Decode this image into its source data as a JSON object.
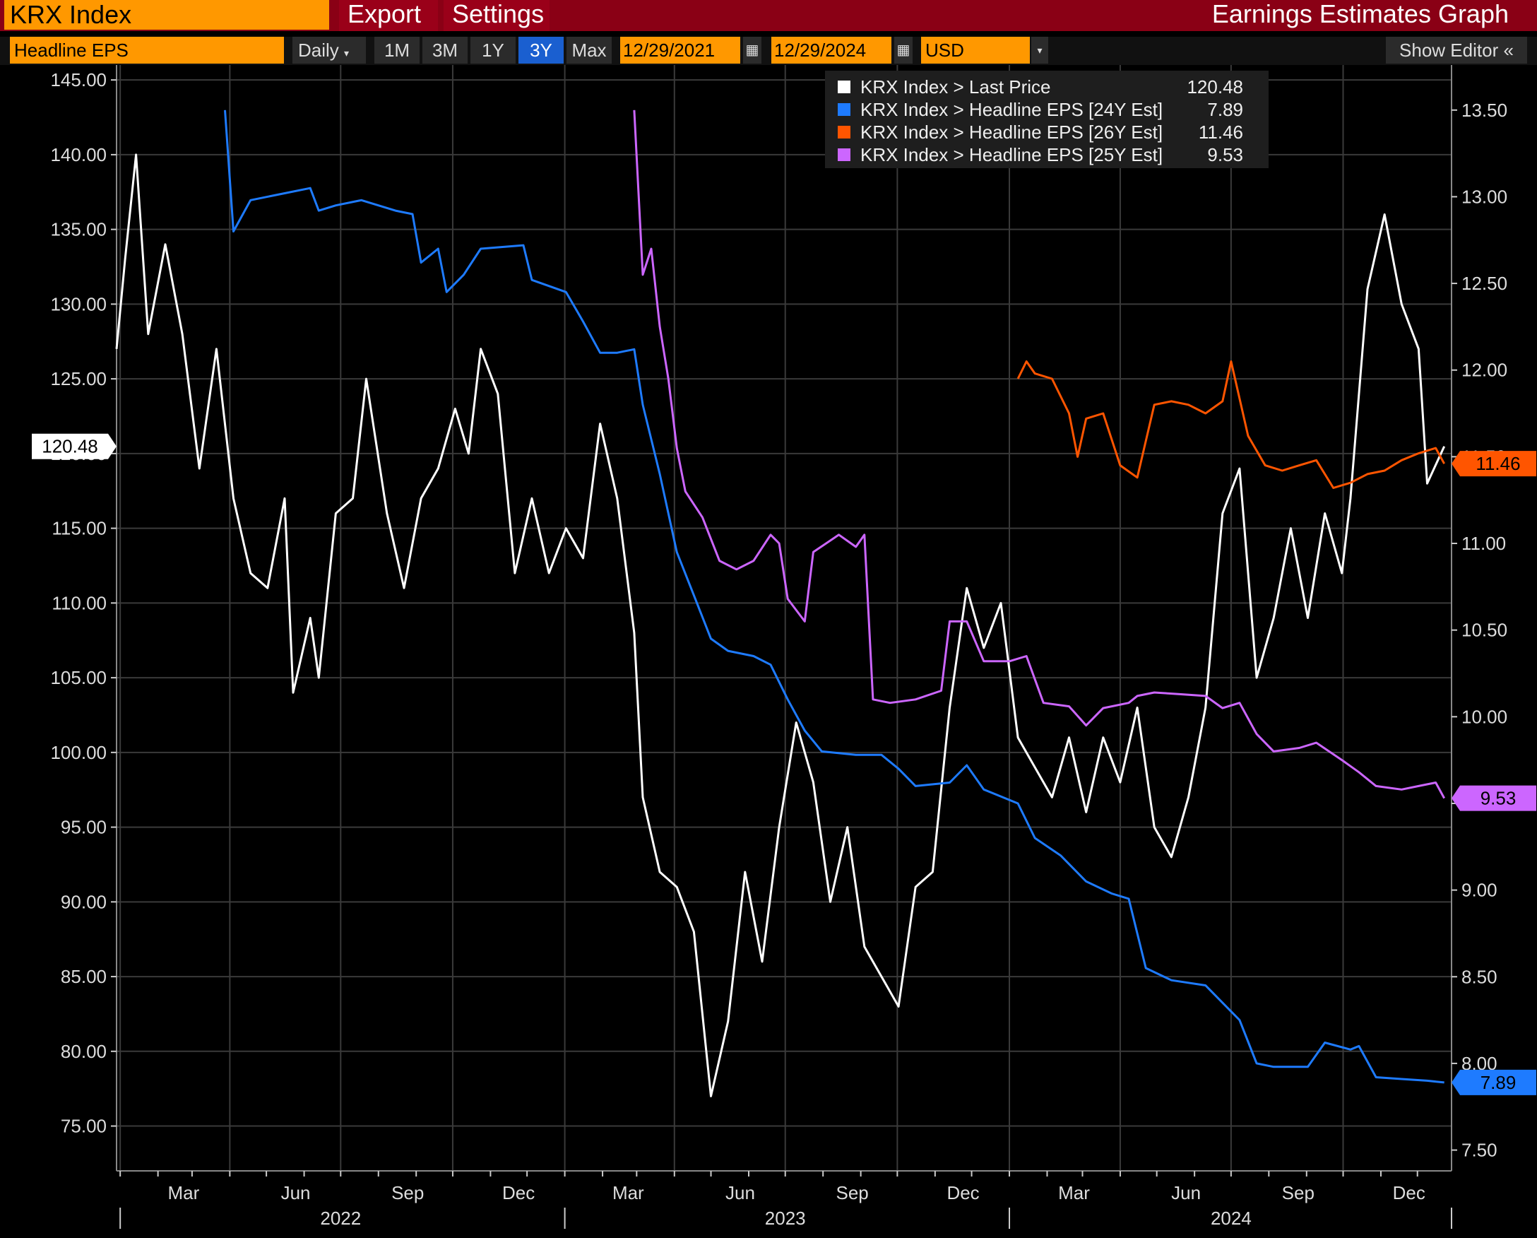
{
  "header": {
    "security": "KRX Index",
    "menu_export": "Export",
    "menu_settings": "Settings",
    "window_title": "Earnings Estimates Graph"
  },
  "toolbar": {
    "field": "Headline EPS",
    "frequency": "Daily",
    "ranges": [
      "1M",
      "3M",
      "1Y",
      "3Y",
      "Max"
    ],
    "active_range": "3Y",
    "start_date": "12/29/2021",
    "end_date": "12/29/2024",
    "currency": "USD",
    "show_editor": "Show Editor"
  },
  "colors": {
    "last_price": "#ffffff",
    "eps_24y": "#1e7bff",
    "eps_26y": "#ff5500",
    "eps_25y": "#cc66ff",
    "header_bg": "#8a0015",
    "accent": "#ff9800"
  },
  "chart_data": {
    "type": "line",
    "grid": true,
    "legend_position": "top-center",
    "x_range": [
      "2021-12-29",
      "2024-12-29"
    ],
    "x_tick_labels": [
      "Mar",
      "Jun",
      "Sep",
      "Dec",
      "Mar",
      "Jun",
      "Sep",
      "Dec",
      "Mar",
      "Jun",
      "Sep",
      "Dec"
    ],
    "x_year_labels": [
      "2022",
      "2023",
      "2024"
    ],
    "y_left": {
      "min": 72.0,
      "max": 146.0,
      "ticks": [
        "145.00",
        "140.00",
        "135.00",
        "130.00",
        "125.00",
        "120.00",
        "115.00",
        "110.00",
        "105.00",
        "100.00",
        "95.00",
        "90.00",
        "85.00",
        "80.00",
        "75.00"
      ]
    },
    "y_right": {
      "min": 7.38,
      "max": 13.76,
      "ticks": [
        "13.50",
        "13.00",
        "12.50",
        "12.00",
        "11.50",
        "11.00",
        "10.50",
        "10.00",
        "9.50",
        "9.00",
        "8.50",
        "8.00",
        "7.50"
      ]
    },
    "series": [
      {
        "name": "KRX Index > Last Price",
        "axis": "left",
        "last": "120.48",
        "points": [
          [
            "2021-12-29",
            127
          ],
          [
            "2022-01-05",
            133
          ],
          [
            "2022-01-14",
            140
          ],
          [
            "2022-01-24",
            128
          ],
          [
            "2022-02-07",
            134
          ],
          [
            "2022-02-21",
            128
          ],
          [
            "2022-03-07",
            119
          ],
          [
            "2022-03-21",
            127
          ],
          [
            "2022-04-04",
            117
          ],
          [
            "2022-04-18",
            112
          ],
          [
            "2022-05-02",
            111
          ],
          [
            "2022-05-16",
            117
          ],
          [
            "2022-05-23",
            104
          ],
          [
            "2022-06-06",
            109
          ],
          [
            "2022-06-13",
            105
          ],
          [
            "2022-06-27",
            116
          ],
          [
            "2022-07-11",
            117
          ],
          [
            "2022-07-22",
            125
          ],
          [
            "2022-08-08",
            116
          ],
          [
            "2022-08-22",
            111
          ],
          [
            "2022-09-05",
            117
          ],
          [
            "2022-09-19",
            119
          ],
          [
            "2022-10-03",
            123
          ],
          [
            "2022-10-14",
            120
          ],
          [
            "2022-10-24",
            127
          ],
          [
            "2022-11-07",
            124
          ],
          [
            "2022-11-21",
            112
          ],
          [
            "2022-12-05",
            117
          ],
          [
            "2022-12-19",
            112
          ],
          [
            "2023-01-02",
            115
          ],
          [
            "2023-01-16",
            113
          ],
          [
            "2023-01-30",
            122
          ],
          [
            "2023-02-13",
            117
          ],
          [
            "2023-02-27",
            108
          ],
          [
            "2023-03-06",
            97
          ],
          [
            "2023-03-20",
            92
          ],
          [
            "2023-04-03",
            91
          ],
          [
            "2023-04-17",
            88
          ],
          [
            "2023-05-01",
            77
          ],
          [
            "2023-05-15",
            82
          ],
          [
            "2023-05-29",
            92
          ],
          [
            "2023-06-12",
            86
          ],
          [
            "2023-06-26",
            95
          ],
          [
            "2023-07-10",
            102
          ],
          [
            "2023-07-24",
            98
          ],
          [
            "2023-08-07",
            90
          ],
          [
            "2023-08-21",
            95
          ],
          [
            "2023-09-04",
            87
          ],
          [
            "2023-09-18",
            85
          ],
          [
            "2023-10-02",
            83
          ],
          [
            "2023-10-16",
            91
          ],
          [
            "2023-10-30",
            92
          ],
          [
            "2023-11-13",
            103
          ],
          [
            "2023-11-27",
            111
          ],
          [
            "2023-12-11",
            107
          ],
          [
            "2023-12-25",
            110
          ],
          [
            "2024-01-08",
            101
          ],
          [
            "2024-01-22",
            99
          ],
          [
            "2024-02-05",
            97
          ],
          [
            "2024-02-19",
            101
          ],
          [
            "2024-03-04",
            96
          ],
          [
            "2024-03-18",
            101
          ],
          [
            "2024-04-01",
            98
          ],
          [
            "2024-04-15",
            103
          ],
          [
            "2024-04-29",
            95
          ],
          [
            "2024-05-13",
            93
          ],
          [
            "2024-05-27",
            97
          ],
          [
            "2024-06-10",
            103
          ],
          [
            "2024-06-24",
            116
          ],
          [
            "2024-07-08",
            119
          ],
          [
            "2024-07-22",
            105
          ],
          [
            "2024-08-05",
            109
          ],
          [
            "2024-08-19",
            115
          ],
          [
            "2024-09-02",
            109
          ],
          [
            "2024-09-16",
            116
          ],
          [
            "2024-09-30",
            112
          ],
          [
            "2024-10-07",
            117
          ],
          [
            "2024-10-21",
            131
          ],
          [
            "2024-11-04",
            136
          ],
          [
            "2024-11-18",
            130
          ],
          [
            "2024-12-02",
            127
          ],
          [
            "2024-12-09",
            118
          ],
          [
            "2024-12-23",
            120.48
          ]
        ]
      },
      {
        "name": "KRX Index > Headline EPS [24Y Est]",
        "axis": "right",
        "last": "7.89",
        "points": [
          [
            "2022-03-28",
            13.5
          ],
          [
            "2022-04-04",
            12.8
          ],
          [
            "2022-04-18",
            12.98
          ],
          [
            "2022-05-16",
            13.02
          ],
          [
            "2022-06-06",
            13.05
          ],
          [
            "2022-06-13",
            12.92
          ],
          [
            "2022-06-27",
            12.95
          ],
          [
            "2022-07-18",
            12.98
          ],
          [
            "2022-08-15",
            12.92
          ],
          [
            "2022-08-29",
            12.9
          ],
          [
            "2022-09-05",
            12.62
          ],
          [
            "2022-09-19",
            12.7
          ],
          [
            "2022-09-26",
            12.45
          ],
          [
            "2022-10-10",
            12.55
          ],
          [
            "2022-10-24",
            12.7
          ],
          [
            "2022-11-28",
            12.72
          ],
          [
            "2022-12-05",
            12.52
          ],
          [
            "2023-01-02",
            12.45
          ],
          [
            "2023-01-16",
            12.28
          ],
          [
            "2023-01-30",
            12.1
          ],
          [
            "2023-02-13",
            12.1
          ],
          [
            "2023-02-27",
            12.12
          ],
          [
            "2023-03-06",
            11.8
          ],
          [
            "2023-03-20",
            11.4
          ],
          [
            "2023-04-03",
            10.95
          ],
          [
            "2023-04-17",
            10.7
          ],
          [
            "2023-05-01",
            10.45
          ],
          [
            "2023-05-15",
            10.38
          ],
          [
            "2023-06-05",
            10.35
          ],
          [
            "2023-06-19",
            10.3
          ],
          [
            "2023-07-03",
            10.1
          ],
          [
            "2023-07-17",
            9.92
          ],
          [
            "2023-07-31",
            9.8
          ],
          [
            "2023-08-28",
            9.78
          ],
          [
            "2023-09-18",
            9.78
          ],
          [
            "2023-10-02",
            9.7
          ],
          [
            "2023-10-16",
            9.6
          ],
          [
            "2023-11-13",
            9.62
          ],
          [
            "2023-11-27",
            9.72
          ],
          [
            "2023-12-11",
            9.58
          ],
          [
            "2024-01-08",
            9.5
          ],
          [
            "2024-01-22",
            9.3
          ],
          [
            "2024-02-12",
            9.2
          ],
          [
            "2024-03-04",
            9.05
          ],
          [
            "2024-03-25",
            8.98
          ],
          [
            "2024-04-08",
            8.95
          ],
          [
            "2024-04-22",
            8.55
          ],
          [
            "2024-05-13",
            8.48
          ],
          [
            "2024-06-10",
            8.45
          ],
          [
            "2024-06-24",
            8.35
          ],
          [
            "2024-07-08",
            8.25
          ],
          [
            "2024-07-22",
            8.0
          ],
          [
            "2024-08-05",
            7.98
          ],
          [
            "2024-08-19",
            7.98
          ],
          [
            "2024-09-02",
            7.98
          ],
          [
            "2024-09-16",
            8.12
          ],
          [
            "2024-10-07",
            8.08
          ],
          [
            "2024-10-14",
            8.1
          ],
          [
            "2024-10-28",
            7.92
          ],
          [
            "2024-11-18",
            7.91
          ],
          [
            "2024-12-09",
            7.9
          ],
          [
            "2024-12-23",
            7.89
          ]
        ]
      },
      {
        "name": "KRX Index > Headline EPS [26Y Est]",
        "axis": "right",
        "last": "11.46",
        "points": [
          [
            "2024-01-08",
            11.95
          ],
          [
            "2024-01-15",
            12.05
          ],
          [
            "2024-01-22",
            11.98
          ],
          [
            "2024-02-05",
            11.95
          ],
          [
            "2024-02-19",
            11.75
          ],
          [
            "2024-02-26",
            11.5
          ],
          [
            "2024-03-04",
            11.72
          ],
          [
            "2024-03-18",
            11.75
          ],
          [
            "2024-04-01",
            11.45
          ],
          [
            "2024-04-15",
            11.38
          ],
          [
            "2024-04-29",
            11.8
          ],
          [
            "2024-05-13",
            11.82
          ],
          [
            "2024-05-27",
            11.8
          ],
          [
            "2024-06-10",
            11.75
          ],
          [
            "2024-06-24",
            11.82
          ],
          [
            "2024-07-01",
            12.05
          ],
          [
            "2024-07-15",
            11.62
          ],
          [
            "2024-07-29",
            11.45
          ],
          [
            "2024-08-12",
            11.42
          ],
          [
            "2024-08-26",
            11.45
          ],
          [
            "2024-09-09",
            11.48
          ],
          [
            "2024-09-23",
            11.32
          ],
          [
            "2024-10-07",
            11.35
          ],
          [
            "2024-10-21",
            11.4
          ],
          [
            "2024-11-04",
            11.42
          ],
          [
            "2024-11-18",
            11.48
          ],
          [
            "2024-12-02",
            11.52
          ],
          [
            "2024-12-16",
            11.55
          ],
          [
            "2024-12-23",
            11.46
          ]
        ]
      },
      {
        "name": "KRX Index > Headline EPS [25Y Est]",
        "axis": "right",
        "last": "9.53",
        "points": [
          [
            "2023-02-27",
            13.5
          ],
          [
            "2023-03-06",
            12.55
          ],
          [
            "2023-03-13",
            12.7
          ],
          [
            "2023-03-20",
            12.25
          ],
          [
            "2023-03-27",
            11.95
          ],
          [
            "2023-04-03",
            11.55
          ],
          [
            "2023-04-10",
            11.3
          ],
          [
            "2023-04-24",
            11.15
          ],
          [
            "2023-05-08",
            10.9
          ],
          [
            "2023-05-22",
            10.85
          ],
          [
            "2023-06-05",
            10.9
          ],
          [
            "2023-06-19",
            11.05
          ],
          [
            "2023-06-26",
            11.0
          ],
          [
            "2023-07-03",
            10.68
          ],
          [
            "2023-07-17",
            10.55
          ],
          [
            "2023-07-24",
            10.95
          ],
          [
            "2023-08-14",
            11.05
          ],
          [
            "2023-08-28",
            10.98
          ],
          [
            "2023-09-04",
            11.05
          ],
          [
            "2023-09-11",
            10.1
          ],
          [
            "2023-09-25",
            10.08
          ],
          [
            "2023-10-16",
            10.1
          ],
          [
            "2023-11-06",
            10.15
          ],
          [
            "2023-11-13",
            10.55
          ],
          [
            "2023-11-27",
            10.55
          ],
          [
            "2023-12-11",
            10.32
          ],
          [
            "2024-01-01",
            10.32
          ],
          [
            "2024-01-15",
            10.35
          ],
          [
            "2024-01-29",
            10.08
          ],
          [
            "2024-02-19",
            10.06
          ],
          [
            "2024-03-04",
            9.95
          ],
          [
            "2024-03-18",
            10.05
          ],
          [
            "2024-04-08",
            10.08
          ],
          [
            "2024-04-15",
            10.12
          ],
          [
            "2024-04-29",
            10.14
          ],
          [
            "2024-05-20",
            10.13
          ],
          [
            "2024-06-10",
            10.12
          ],
          [
            "2024-06-24",
            10.05
          ],
          [
            "2024-07-08",
            10.08
          ],
          [
            "2024-07-22",
            9.9
          ],
          [
            "2024-08-05",
            9.8
          ],
          [
            "2024-08-26",
            9.82
          ],
          [
            "2024-09-09",
            9.85
          ],
          [
            "2024-09-30",
            9.75
          ],
          [
            "2024-10-14",
            9.68
          ],
          [
            "2024-10-28",
            9.6
          ],
          [
            "2024-11-18",
            9.58
          ],
          [
            "2024-12-02",
            9.6
          ],
          [
            "2024-12-16",
            9.62
          ],
          [
            "2024-12-23",
            9.53
          ]
        ]
      }
    ]
  }
}
